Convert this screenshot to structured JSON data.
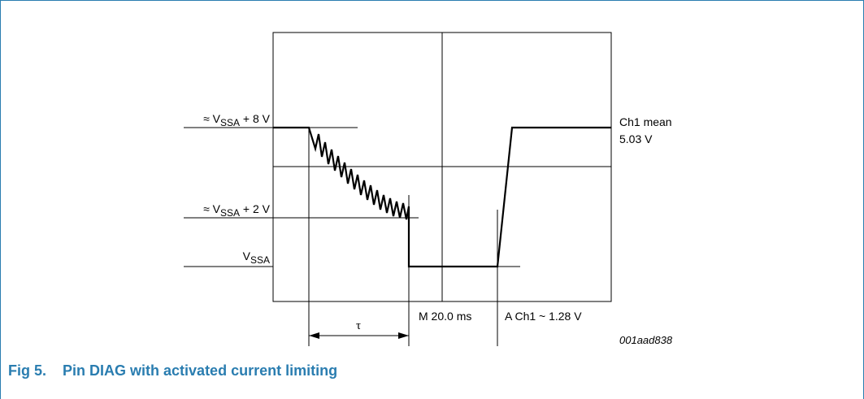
{
  "figure": {
    "labels": {
      "vssa_plus_8": {
        "prefix": "≈ V",
        "sub": "SSA",
        "suffix": " + 8 V"
      },
      "vssa_plus_2": {
        "prefix": "≈ V",
        "sub": "SSA",
        "suffix": " + 2 V"
      },
      "vssa": {
        "prefix": "V",
        "sub": "SSA",
        "suffix": ""
      },
      "ch1_mean_title": "Ch1 mean",
      "ch1_mean_value": "5.03 V",
      "tau": "τ",
      "timebase": "M 20.0 ms",
      "trigger": "A Ch1 ~ 1.28 V",
      "ref_code": "001aad838"
    },
    "caption": {
      "number": "Fig 5.",
      "title": "Pin DIAG with activated current limiting"
    }
  },
  "colors": {
    "frame": "#2a7db0",
    "caption": "#2a7db0",
    "lines": "#000000"
  }
}
